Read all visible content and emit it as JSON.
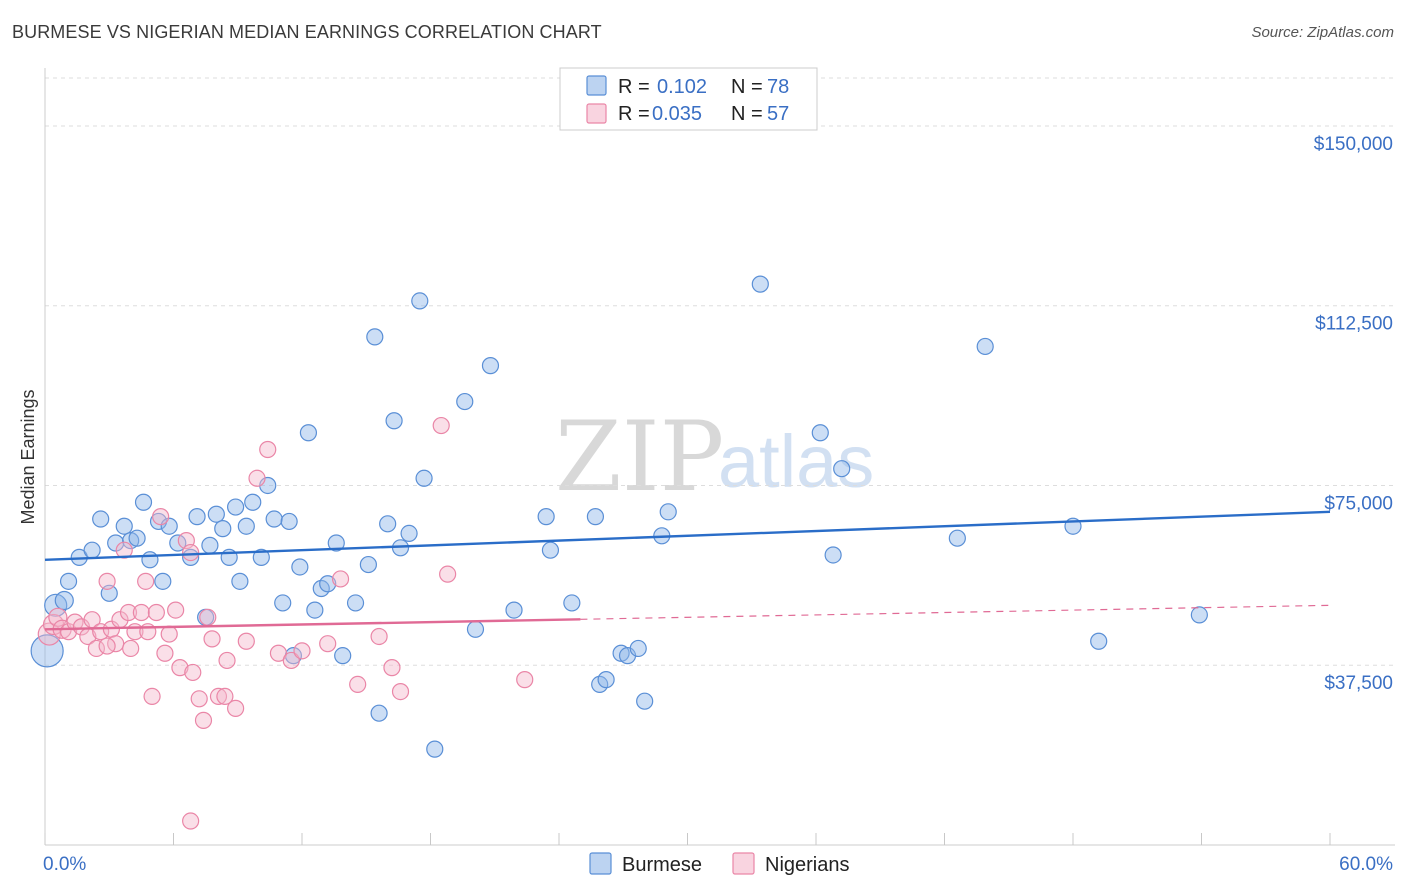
{
  "header": {
    "title": "BURMESE VS NIGERIAN MEDIAN EARNINGS CORRELATION CHART",
    "source": "Source: ZipAtlas.com"
  },
  "watermark": {
    "zip": "ZIP",
    "atlas": "atlas"
  },
  "chart_data": {
    "type": "scatter",
    "title": "BURMESE VS NIGERIAN MEDIAN EARNINGS CORRELATION CHART",
    "xlabel": "",
    "ylabel": "Median Earnings",
    "xlim": [
      0,
      60
    ],
    "ylim": [
      0,
      160000
    ],
    "x_tick_labels": {
      "min": "0.0%",
      "max": "60.0%"
    },
    "y_ticks": [
      {
        "value": 37500,
        "label": "$37,500"
      },
      {
        "value": 75000,
        "label": "$75,000"
      },
      {
        "value": 112500,
        "label": "$112,500"
      },
      {
        "value": 150000,
        "label": "$150,000"
      }
    ],
    "grid": true,
    "legend_position": "top-center",
    "series": [
      {
        "name": "Burmese",
        "color": "#8fb5e8",
        "stroke": "#5a8fd6",
        "line_color": "#2a6dc8",
        "r_label": "R =",
        "r": "0.102",
        "n_label": "N =",
        "n": "78",
        "trend": {
          "x0": 0,
          "y0": 59500,
          "x1": 60,
          "y1": 69500,
          "dashed_from": null
        },
        "points": [
          [
            0.1,
            40500,
            16
          ],
          [
            0.5,
            50000,
            11
          ],
          [
            0.9,
            51000,
            9
          ],
          [
            1.1,
            55000,
            8
          ],
          [
            1.6,
            60000,
            8
          ],
          [
            2.2,
            61500,
            8
          ],
          [
            2.6,
            68000,
            8
          ],
          [
            3.0,
            52500,
            8
          ],
          [
            3.3,
            63000,
            8
          ],
          [
            3.7,
            66500,
            8
          ],
          [
            4.0,
            63500,
            8
          ],
          [
            4.3,
            64000,
            8
          ],
          [
            4.6,
            71500,
            8
          ],
          [
            4.9,
            59500,
            8
          ],
          [
            5.3,
            67500,
            8
          ],
          [
            5.5,
            55000,
            8
          ],
          [
            5.8,
            66500,
            8
          ],
          [
            6.2,
            63000,
            8
          ],
          [
            6.8,
            60000,
            8
          ],
          [
            7.1,
            68500,
            8
          ],
          [
            7.5,
            47500,
            8
          ],
          [
            7.7,
            62500,
            8
          ],
          [
            8.0,
            69000,
            8
          ],
          [
            8.3,
            66000,
            8
          ],
          [
            8.6,
            60000,
            8
          ],
          [
            8.9,
            70500,
            8
          ],
          [
            9.1,
            55000,
            8
          ],
          [
            9.4,
            66500,
            8
          ],
          [
            9.7,
            71500,
            8
          ],
          [
            10.1,
            60000,
            8
          ],
          [
            10.4,
            75000,
            8
          ],
          [
            10.7,
            68000,
            8
          ],
          [
            11.1,
            50500,
            8
          ],
          [
            11.4,
            67500,
            8
          ],
          [
            11.6,
            39500,
            8
          ],
          [
            11.9,
            58000,
            8
          ],
          [
            12.3,
            86000,
            8
          ],
          [
            12.6,
            49000,
            8
          ],
          [
            12.9,
            53500,
            8
          ],
          [
            13.2,
            54500,
            8
          ],
          [
            13.6,
            63000,
            8
          ],
          [
            13.9,
            39500,
            8
          ],
          [
            14.5,
            50500,
            8
          ],
          [
            15.1,
            58500,
            8
          ],
          [
            15.4,
            106000,
            8
          ],
          [
            15.6,
            27500,
            8
          ],
          [
            16.0,
            67000,
            8
          ],
          [
            16.3,
            88500,
            8
          ],
          [
            16.6,
            62000,
            8
          ],
          [
            17.0,
            65000,
            8
          ],
          [
            17.5,
            113500,
            8
          ],
          [
            17.7,
            76500,
            8
          ],
          [
            18.2,
            20000,
            8
          ],
          [
            19.6,
            92500,
            8
          ],
          [
            20.8,
            100000,
            8
          ],
          [
            21.9,
            49000,
            8
          ],
          [
            20.1,
            45000,
            8
          ],
          [
            23.4,
            68500,
            8
          ],
          [
            23.6,
            61500,
            8
          ],
          [
            24.6,
            50500,
            8
          ],
          [
            25.7,
            68500,
            8
          ],
          [
            25.9,
            33500,
            8
          ],
          [
            26.2,
            34500,
            8
          ],
          [
            26.9,
            40000,
            8
          ],
          [
            27.2,
            39500,
            8
          ],
          [
            27.7,
            41000,
            8
          ],
          [
            28.0,
            30000,
            8
          ],
          [
            28.8,
            64500,
            8
          ],
          [
            29.1,
            69500,
            8
          ],
          [
            33.4,
            117000,
            8
          ],
          [
            36.2,
            86000,
            8
          ],
          [
            36.8,
            60500,
            8
          ],
          [
            37.2,
            78500,
            8
          ],
          [
            42.6,
            64000,
            8
          ],
          [
            43.9,
            104000,
            8
          ],
          [
            48.0,
            66500,
            8
          ],
          [
            49.2,
            42500,
            8
          ],
          [
            53.9,
            48000,
            8
          ]
        ]
      },
      {
        "name": "Nigerians",
        "color": "#f5b8cb",
        "stroke": "#ea86a7",
        "line_color": "#e06a95",
        "r_label": "R =",
        "r": "0.035",
        "n_label": "N =",
        "n": "57",
        "trend": {
          "x0": 0,
          "y0": 45000,
          "x1": 60,
          "y1": 50000,
          "dashed_from": 25
        },
        "points": [
          [
            0.2,
            44000,
            11
          ],
          [
            0.4,
            46000,
            10
          ],
          [
            0.6,
            47500,
            9
          ],
          [
            0.8,
            45000,
            9
          ],
          [
            1.1,
            44500,
            8
          ],
          [
            1.4,
            46500,
            8
          ],
          [
            1.7,
            45500,
            8
          ],
          [
            2.0,
            43500,
            8
          ],
          [
            2.2,
            47000,
            8
          ],
          [
            2.4,
            41000,
            8
          ],
          [
            2.6,
            44500,
            8
          ],
          [
            2.9,
            55000,
            8
          ],
          [
            3.1,
            45000,
            8
          ],
          [
            3.3,
            42000,
            8
          ],
          [
            3.5,
            47000,
            8
          ],
          [
            3.7,
            61500,
            8
          ],
          [
            3.9,
            48500,
            8
          ],
          [
            4.0,
            41000,
            8
          ],
          [
            4.2,
            44500,
            8
          ],
          [
            4.5,
            48500,
            8
          ],
          [
            4.7,
            55000,
            8
          ],
          [
            4.8,
            44500,
            8
          ],
          [
            5.0,
            31000,
            8
          ],
          [
            5.2,
            48500,
            8
          ],
          [
            5.4,
            68500,
            8
          ],
          [
            5.6,
            40000,
            8
          ],
          [
            5.8,
            44000,
            8
          ],
          [
            6.1,
            49000,
            8
          ],
          [
            6.3,
            37000,
            8
          ],
          [
            6.6,
            63500,
            8
          ],
          [
            6.8,
            61000,
            8
          ],
          [
            6.9,
            36000,
            8
          ],
          [
            7.2,
            30500,
            8
          ],
          [
            7.4,
            26000,
            8
          ],
          [
            7.6,
            47500,
            8
          ],
          [
            7.8,
            43000,
            8
          ],
          [
            8.1,
            31000,
            8
          ],
          [
            8.4,
            31000,
            8
          ],
          [
            8.5,
            38500,
            8
          ],
          [
            8.9,
            28500,
            8
          ],
          [
            9.4,
            42500,
            8
          ],
          [
            9.9,
            76500,
            8
          ],
          [
            10.4,
            82500,
            8
          ],
          [
            10.9,
            40000,
            8
          ],
          [
            11.5,
            38500,
            8
          ],
          [
            12.0,
            40500,
            8
          ],
          [
            13.2,
            42000,
            8
          ],
          [
            13.8,
            55500,
            8
          ],
          [
            14.6,
            33500,
            8
          ],
          [
            15.6,
            43500,
            8
          ],
          [
            16.2,
            37000,
            8
          ],
          [
            16.6,
            32000,
            8
          ],
          [
            18.5,
            87500,
            8
          ],
          [
            18.8,
            56500,
            8
          ],
          [
            22.4,
            34500,
            8
          ],
          [
            6.8,
            5000,
            8
          ],
          [
            2.9,
            41500,
            8
          ]
        ]
      }
    ]
  },
  "bottom_legend": [
    {
      "label": "Burmese"
    },
    {
      "label": "Nigerians"
    }
  ]
}
